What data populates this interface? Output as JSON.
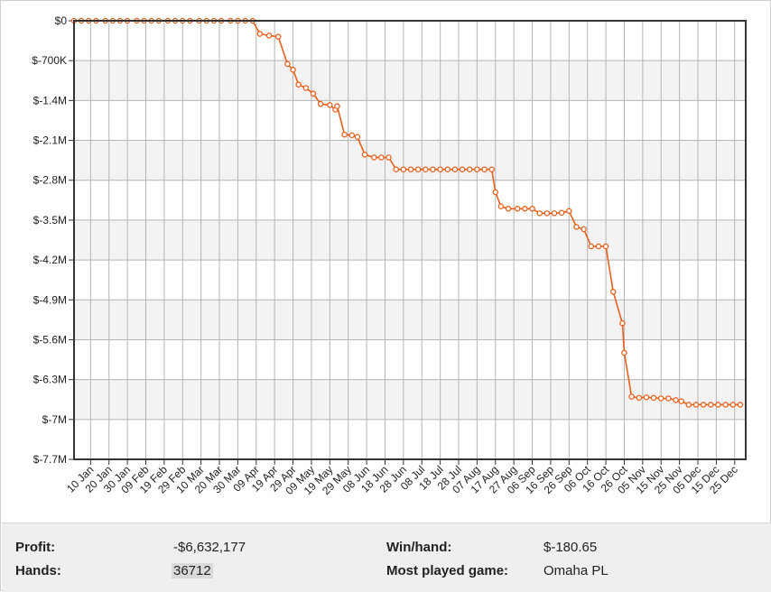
{
  "chart_data": {
    "type": "line",
    "title": "",
    "xlabel": "",
    "ylabel": "",
    "ylim": [
      -7700000,
      0
    ],
    "y_ticks": [
      0,
      -700000,
      -1400000,
      -2100000,
      -2800000,
      -3500000,
      -4200000,
      -4900000,
      -5600000,
      -6300000,
      -7000000,
      -7700000
    ],
    "y_tick_labels": [
      "$0",
      "$-700K",
      "$-1.4M",
      "$-2.1M",
      "$-2.8M",
      "$-3.5M",
      "$-4.2M",
      "$-4.9M",
      "$-5.6M",
      "$-6.3M",
      "$-7M",
      "$-7.7M"
    ],
    "x_tick_labels": [
      "10 Jan",
      "20 Jan",
      "30 Jan",
      "09 Feb",
      "19 Feb",
      "29 Feb",
      "10 Mar",
      "20 Mar",
      "30 Mar",
      "09 Apr",
      "19 Apr",
      "29 Apr",
      "09 May",
      "19 May",
      "29 May",
      "08 Jun",
      "18 Jun",
      "28 Jun",
      "08 Jul",
      "18 Jul",
      "28 Jul",
      "07 Aug",
      "17 Aug",
      "27 Aug",
      "06 Sep",
      "16 Sep",
      "26 Sep",
      "06 Oct",
      "16 Oct",
      "26 Oct",
      "05 Nov",
      "15 Nov",
      "25 Nov",
      "05 Dec",
      "15 Dec",
      "25 Dec"
    ],
    "x_domain": [
      "2012-01-01",
      "2012-12-31"
    ],
    "grid": true,
    "line_color": "#e8601c",
    "marker_fill": "#ffffff",
    "series": [
      {
        "values": [
          [
            "2012-01-01",
            0
          ],
          [
            "2012-01-05",
            0
          ],
          [
            "2012-01-09",
            0
          ],
          [
            "2012-01-13",
            0
          ],
          [
            "2012-01-18",
            0
          ],
          [
            "2012-01-22",
            0
          ],
          [
            "2012-01-26",
            0
          ],
          [
            "2012-01-30",
            0
          ],
          [
            "2012-02-04",
            0
          ],
          [
            "2012-02-08",
            0
          ],
          [
            "2012-02-12",
            0
          ],
          [
            "2012-02-16",
            0
          ],
          [
            "2012-02-21",
            0
          ],
          [
            "2012-02-25",
            0
          ],
          [
            "2012-02-29",
            0
          ],
          [
            "2012-03-04",
            0
          ],
          [
            "2012-03-09",
            0
          ],
          [
            "2012-03-13",
            0
          ],
          [
            "2012-03-17",
            0
          ],
          [
            "2012-03-21",
            0
          ],
          [
            "2012-03-26",
            0
          ],
          [
            "2012-03-30",
            0
          ],
          [
            "2012-04-03",
            0
          ],
          [
            "2012-04-07",
            0
          ],
          [
            "2012-04-11",
            -230000
          ],
          [
            "2012-04-16",
            -260000
          ],
          [
            "2012-04-21",
            -280000
          ],
          [
            "2012-04-26",
            -760000
          ],
          [
            "2012-04-29",
            -860000
          ],
          [
            "2012-05-02",
            -1120000
          ],
          [
            "2012-05-06",
            -1180000
          ],
          [
            "2012-05-10",
            -1280000
          ],
          [
            "2012-05-14",
            -1460000
          ],
          [
            "2012-05-19",
            -1480000
          ],
          [
            "2012-05-22",
            -1560000
          ],
          [
            "2012-05-23",
            -1500000
          ],
          [
            "2012-05-27",
            -2000000
          ],
          [
            "2012-05-31",
            -2010000
          ],
          [
            "2012-06-03",
            -2040000
          ],
          [
            "2012-06-07",
            -2350000
          ],
          [
            "2012-06-12",
            -2400000
          ],
          [
            "2012-06-16",
            -2400000
          ],
          [
            "2012-06-20",
            -2400000
          ],
          [
            "2012-06-24",
            -2610000
          ],
          [
            "2012-06-28",
            -2610000
          ],
          [
            "2012-07-02",
            -2610000
          ],
          [
            "2012-07-06",
            -2610000
          ],
          [
            "2012-07-10",
            -2610000
          ],
          [
            "2012-07-14",
            -2610000
          ],
          [
            "2012-07-18",
            -2610000
          ],
          [
            "2012-07-22",
            -2610000
          ],
          [
            "2012-07-26",
            -2610000
          ],
          [
            "2012-07-30",
            -2610000
          ],
          [
            "2012-08-03",
            -2610000
          ],
          [
            "2012-08-07",
            -2610000
          ],
          [
            "2012-08-11",
            -2610000
          ],
          [
            "2012-08-15",
            -2610000
          ],
          [
            "2012-08-17",
            -3010000
          ],
          [
            "2012-08-20",
            -3260000
          ],
          [
            "2012-08-24",
            -3300000
          ],
          [
            "2012-08-29",
            -3300000
          ],
          [
            "2012-09-02",
            -3300000
          ],
          [
            "2012-09-06",
            -3300000
          ],
          [
            "2012-09-10",
            -3380000
          ],
          [
            "2012-09-14",
            -3380000
          ],
          [
            "2012-09-18",
            -3380000
          ],
          [
            "2012-09-22",
            -3370000
          ],
          [
            "2012-09-26",
            -3340000
          ],
          [
            "2012-09-30",
            -3620000
          ],
          [
            "2012-10-04",
            -3660000
          ],
          [
            "2012-10-08",
            -3960000
          ],
          [
            "2012-10-12",
            -3960000
          ],
          [
            "2012-10-16",
            -3960000
          ],
          [
            "2012-10-20",
            -4760000
          ],
          [
            "2012-10-25",
            -5310000
          ],
          [
            "2012-10-26",
            -5830000
          ],
          [
            "2012-10-30",
            -6600000
          ],
          [
            "2012-11-03",
            -6620000
          ],
          [
            "2012-11-07",
            -6610000
          ],
          [
            "2012-11-11",
            -6620000
          ],
          [
            "2012-11-15",
            -6630000
          ],
          [
            "2012-11-19",
            -6630000
          ],
          [
            "2012-11-23",
            -6660000
          ],
          [
            "2012-11-26",
            -6680000
          ],
          [
            "2012-11-30",
            -6740000
          ],
          [
            "2012-12-04",
            -6740000
          ],
          [
            "2012-12-08",
            -6740000
          ],
          [
            "2012-12-12",
            -6740000
          ],
          [
            "2012-12-16",
            -6740000
          ],
          [
            "2012-12-20",
            -6740000
          ],
          [
            "2012-12-24",
            -6740000
          ],
          [
            "2012-12-28",
            -6740000
          ]
        ]
      }
    ]
  },
  "stats": {
    "profit_label": "Profit:",
    "profit_value": "-$6,632,177",
    "hands_label": "Hands:",
    "hands_value": "36712",
    "winhand_label": "Win/hand:",
    "winhand_value": "$-180.65",
    "game_label": "Most played game:",
    "game_value": "Omaha PL"
  }
}
